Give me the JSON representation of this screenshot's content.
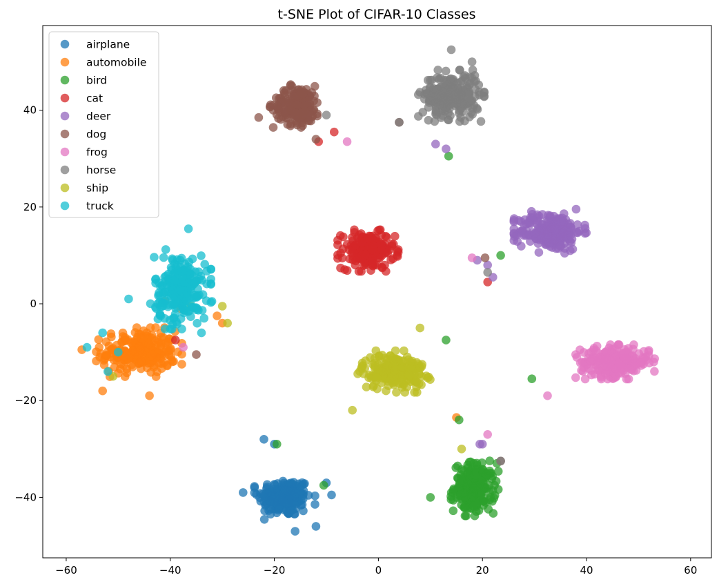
{
  "chart_data": {
    "type": "scatter",
    "title": "t-SNE Plot of CIFAR-10 Classes",
    "xlabel": "",
    "ylabel": "",
    "xlim": [
      -64.5,
      64
    ],
    "ylim": [
      -52.5,
      57.5
    ],
    "x_ticks": [
      -60,
      -40,
      -20,
      0,
      20,
      40,
      60
    ],
    "y_ticks": [
      -40,
      -20,
      0,
      20,
      40
    ],
    "x_tick_labels": [
      "−60",
      "−40",
      "−20",
      "0",
      "20",
      "40",
      "60"
    ],
    "y_tick_labels": [
      "−40",
      "−20",
      "0",
      "20",
      "40"
    ],
    "grid": false,
    "legend_position": "top-left",
    "marker_alpha": 0.75,
    "series": [
      {
        "name": "airplane",
        "color": "#1f77b4",
        "cluster": {
          "center": [
            -18,
            -40
          ],
          "spread": [
            4.6,
            3.6
          ],
          "count": 190
        },
        "points": [
          [
            -22,
            -28
          ],
          [
            -20,
            -29
          ],
          [
            -10,
            -37
          ],
          [
            -9,
            -39.5
          ],
          [
            -26,
            -39
          ],
          [
            -16,
            -47
          ],
          [
            -12,
            -46
          ]
        ]
      },
      {
        "name": "automobile",
        "color": "#ff7f0e",
        "cluster": {
          "center": [
            -46,
            -10
          ],
          "spread": [
            6.5,
            4.0
          ],
          "count": 230
        },
        "points": [
          [
            -57,
            -9.5
          ],
          [
            -53,
            -18
          ],
          [
            -44,
            -19
          ],
          [
            -31,
            -2.5
          ],
          [
            -30,
            -4
          ],
          [
            -38,
            -1
          ],
          [
            15,
            -23.5
          ],
          [
            -41,
            0.5
          ]
        ]
      },
      {
        "name": "bird",
        "color": "#2ca02c",
        "cluster": {
          "center": [
            18.5,
            -38
          ],
          "spread": [
            3.6,
            4.6
          ],
          "count": 200
        },
        "points": [
          [
            13.5,
            30.5
          ],
          [
            29.5,
            -15.5
          ],
          [
            15.5,
            -24
          ],
          [
            -19.5,
            -29
          ],
          [
            -10.5,
            -37.5
          ],
          [
            23.5,
            10
          ],
          [
            10,
            -40
          ],
          [
            13,
            -7.5
          ]
        ]
      },
      {
        "name": "cat",
        "color": "#d62728",
        "cluster": {
          "center": [
            -2,
            11
          ],
          "spread": [
            4.6,
            3.4
          ],
          "count": 190
        },
        "points": [
          [
            -11.5,
            33.5
          ],
          [
            -8.5,
            35.5
          ],
          [
            21,
            4.5
          ],
          [
            -39,
            -7.5
          ]
        ]
      },
      {
        "name": "deer",
        "color": "#9467bd",
        "cluster": {
          "center": [
            33,
            15
          ],
          "spread": [
            5.5,
            3.6
          ],
          "count": 210
        },
        "points": [
          [
            22,
            5.5
          ],
          [
            21,
            8
          ],
          [
            19,
            9
          ],
          [
            11,
            33
          ],
          [
            13,
            32
          ],
          [
            20,
            -29
          ],
          [
            19.5,
            -29
          ]
        ]
      },
      {
        "name": "dog",
        "color": "#8c564b",
        "cluster": {
          "center": [
            -15.5,
            41
          ],
          "spread": [
            4.2,
            3.6
          ],
          "count": 190
        },
        "points": [
          [
            -23,
            38.5
          ],
          [
            -12,
            34
          ],
          [
            20.5,
            9.5
          ],
          [
            -35,
            -10.5
          ],
          [
            4,
            37.5
          ],
          [
            23.5,
            -32.5
          ]
        ]
      },
      {
        "name": "frog",
        "color": "#e377c2",
        "cluster": {
          "center": [
            45.5,
            -12
          ],
          "spread": [
            6.0,
            2.8
          ],
          "count": 240
        },
        "points": [
          [
            -6,
            33.5
          ],
          [
            18,
            9.5
          ],
          [
            32.5,
            -19
          ],
          [
            21,
            -27
          ],
          [
            -37.5,
            -9
          ]
        ]
      },
      {
        "name": "horse",
        "color": "#7f7f7f",
        "cluster": {
          "center": [
            14,
            43
          ],
          "spread": [
            5.0,
            4.2
          ],
          "count": 230
        },
        "points": [
          [
            4,
            37.5
          ],
          [
            21,
            6.5
          ],
          [
            13.5,
            38
          ],
          [
            -10,
            39
          ],
          [
            23.5,
            -32.5
          ],
          [
            18,
            50
          ],
          [
            14,
            52.5
          ]
        ]
      },
      {
        "name": "ship",
        "color": "#bcbd22",
        "cluster": {
          "center": [
            3,
            -14
          ],
          "spread": [
            5.5,
            3.4
          ],
          "count": 200
        },
        "points": [
          [
            -29,
            -4
          ],
          [
            -30,
            -0.5
          ],
          [
            -36,
            -0.5
          ],
          [
            -51,
            -15
          ],
          [
            16,
            -30
          ],
          [
            8,
            -5
          ],
          [
            -5,
            -22
          ]
        ]
      },
      {
        "name": "truck",
        "color": "#17becf",
        "cluster": {
          "center": [
            -38,
            3
          ],
          "spread": [
            4.6,
            6.5
          ],
          "count": 220
        },
        "points": [
          [
            -56,
            -9
          ],
          [
            -53,
            -6
          ],
          [
            -48,
            1
          ],
          [
            -50,
            -10
          ],
          [
            -52,
            -14
          ],
          [
            -36.5,
            15.5
          ],
          [
            -32,
            0.5
          ],
          [
            -34,
            -6
          ]
        ]
      }
    ]
  }
}
